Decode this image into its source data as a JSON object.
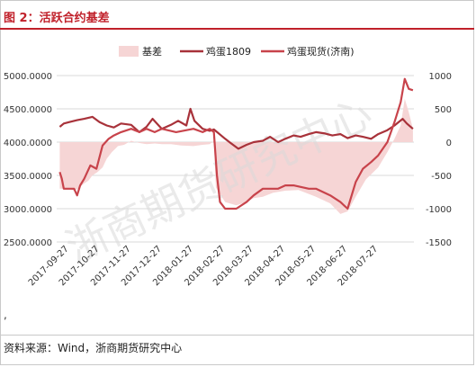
{
  "figure_title": "图 2：活跃合约基差",
  "footnote_mark": ",",
  "source_text": "资料来源：Wind，浙商期货研究中心",
  "watermark": "浙商期货研究中心",
  "colors": {
    "title": "#c0202a",
    "basis_fill": "#f6d5d5",
    "futures_line": "#a8323a",
    "spot_line": "#c8434b",
    "axis_text": "#333333",
    "gridline": "#d9d9d9",
    "watermark": "#d8d8d8"
  },
  "chart_data": {
    "type": "line",
    "legend_position": "top",
    "grid": true,
    "series": [
      {
        "name": "基差",
        "type": "area",
        "axis": "right",
        "points": [
          [
            "2017-09-18",
            -700
          ],
          [
            "2017-09-27",
            -700
          ],
          [
            "2017-10-02",
            -730
          ],
          [
            "2017-10-06",
            -700
          ],
          [
            "2017-10-12",
            -620
          ],
          [
            "2017-10-16",
            -580
          ],
          [
            "2017-10-20",
            -500
          ],
          [
            "2017-10-25",
            -450
          ],
          [
            "2017-10-30",
            -380
          ],
          [
            "2017-11-03",
            -250
          ],
          [
            "2017-11-08",
            -150
          ],
          [
            "2017-11-14",
            -60
          ],
          [
            "2017-11-20",
            -40
          ],
          [
            "2017-11-27",
            20
          ],
          [
            "2017-12-04",
            -10
          ],
          [
            "2017-12-12",
            -30
          ],
          [
            "2017-12-20",
            -20
          ],
          [
            "2017-12-27",
            -30
          ],
          [
            "2018-01-05",
            -30
          ],
          [
            "2018-01-15",
            -50
          ],
          [
            "2018-01-27",
            -60
          ],
          [
            "2018-02-05",
            -40
          ],
          [
            "2018-02-12",
            -30
          ],
          [
            "2018-02-16",
            20
          ],
          [
            "2018-02-18",
            -680
          ],
          [
            "2018-02-27",
            -900
          ],
          [
            "2018-03-10",
            -950
          ],
          [
            "2018-03-20",
            -900
          ],
          [
            "2018-03-27",
            -840
          ],
          [
            "2018-04-05",
            -820
          ],
          [
            "2018-04-15",
            -760
          ],
          [
            "2018-04-27",
            -730
          ],
          [
            "2018-05-10",
            -720
          ],
          [
            "2018-05-27",
            -820
          ],
          [
            "2018-06-10",
            -920
          ],
          [
            "2018-06-20",
            -1080
          ],
          [
            "2018-06-27",
            -1040
          ],
          [
            "2018-07-05",
            -820
          ],
          [
            "2018-07-15",
            -560
          ],
          [
            "2018-07-27",
            -380
          ],
          [
            "2018-08-05",
            -150
          ],
          [
            "2018-08-12",
            50
          ],
          [
            "2018-08-18",
            250
          ],
          [
            "2018-08-22",
            650
          ],
          [
            "2018-08-26",
            450
          ],
          [
            "2018-08-30",
            200
          ]
        ]
      },
      {
        "name": "鸡蛋1809",
        "type": "line",
        "axis": "left",
        "points": [
          [
            "2017-09-18",
            4230
          ],
          [
            "2017-09-22",
            4280
          ],
          [
            "2017-09-27",
            4300
          ],
          [
            "2017-10-05",
            4330
          ],
          [
            "2017-10-12",
            4350
          ],
          [
            "2017-10-20",
            4380
          ],
          [
            "2017-10-27",
            4300
          ],
          [
            "2017-11-03",
            4250
          ],
          [
            "2017-11-10",
            4220
          ],
          [
            "2017-11-17",
            4280
          ],
          [
            "2017-11-27",
            4260
          ],
          [
            "2017-12-05",
            4150
          ],
          [
            "2017-12-12",
            4230
          ],
          [
            "2017-12-18",
            4350
          ],
          [
            "2017-12-27",
            4200
          ],
          [
            "2018-01-05",
            4260
          ],
          [
            "2018-01-12",
            4320
          ],
          [
            "2018-01-20",
            4250
          ],
          [
            "2018-01-24",
            4500
          ],
          [
            "2018-01-28",
            4320
          ],
          [
            "2018-02-05",
            4200
          ],
          [
            "2018-02-12",
            4170
          ],
          [
            "2018-02-16",
            4190
          ],
          [
            "2018-02-27",
            4050
          ],
          [
            "2018-03-05",
            3980
          ],
          [
            "2018-03-12",
            3900
          ],
          [
            "2018-03-20",
            3960
          ],
          [
            "2018-03-27",
            4000
          ],
          [
            "2018-04-05",
            4020
          ],
          [
            "2018-04-12",
            4080
          ],
          [
            "2018-04-20",
            4000
          ],
          [
            "2018-04-27",
            4050
          ],
          [
            "2018-05-05",
            4100
          ],
          [
            "2018-05-12",
            4080
          ],
          [
            "2018-05-20",
            4120
          ],
          [
            "2018-05-27",
            4150
          ],
          [
            "2018-06-05",
            4130
          ],
          [
            "2018-06-12",
            4100
          ],
          [
            "2018-06-20",
            4120
          ],
          [
            "2018-06-27",
            4060
          ],
          [
            "2018-07-05",
            4100
          ],
          [
            "2018-07-12",
            4080
          ],
          [
            "2018-07-20",
            4050
          ],
          [
            "2018-07-27",
            4120
          ],
          [
            "2018-08-05",
            4180
          ],
          [
            "2018-08-12",
            4250
          ],
          [
            "2018-08-20",
            4350
          ],
          [
            "2018-08-24",
            4280
          ],
          [
            "2018-08-30",
            4200
          ]
        ]
      },
      {
        "name": "鸡蛋现货(济南)",
        "type": "line",
        "axis": "left",
        "points": [
          [
            "2017-09-18",
            3550
          ],
          [
            "2017-09-20",
            3450
          ],
          [
            "2017-09-22",
            3300
          ],
          [
            "2017-10-02",
            3300
          ],
          [
            "2017-10-05",
            3200
          ],
          [
            "2017-10-08",
            3350
          ],
          [
            "2017-10-12",
            3450
          ],
          [
            "2017-10-18",
            3650
          ],
          [
            "2017-10-24",
            3600
          ],
          [
            "2017-10-30",
            3950
          ],
          [
            "2017-11-05",
            4050
          ],
          [
            "2017-11-10",
            4100
          ],
          [
            "2017-11-17",
            4150
          ],
          [
            "2017-11-27",
            4200
          ],
          [
            "2017-12-05",
            4150
          ],
          [
            "2017-12-12",
            4200
          ],
          [
            "2017-12-20",
            4150
          ],
          [
            "2017-12-27",
            4200
          ],
          [
            "2018-01-10",
            4150
          ],
          [
            "2018-01-27",
            4200
          ],
          [
            "2018-02-05",
            4150
          ],
          [
            "2018-02-12",
            4200
          ],
          [
            "2018-02-16",
            4150
          ],
          [
            "2018-02-19",
            3500
          ],
          [
            "2018-02-22",
            3100
          ],
          [
            "2018-02-27",
            3000
          ],
          [
            "2018-03-10",
            3000
          ],
          [
            "2018-03-20",
            3100
          ],
          [
            "2018-03-27",
            3200
          ],
          [
            "2018-04-05",
            3300
          ],
          [
            "2018-04-20",
            3300
          ],
          [
            "2018-04-27",
            3350
          ],
          [
            "2018-05-05",
            3350
          ],
          [
            "2018-05-20",
            3300
          ],
          [
            "2018-05-27",
            3300
          ],
          [
            "2018-06-10",
            3200
          ],
          [
            "2018-06-20",
            3100
          ],
          [
            "2018-06-27",
            3000
          ],
          [
            "2018-07-05",
            3400
          ],
          [
            "2018-07-12",
            3600
          ],
          [
            "2018-07-20",
            3700
          ],
          [
            "2018-07-27",
            3800
          ],
          [
            "2018-08-05",
            4000
          ],
          [
            "2018-08-12",
            4300
          ],
          [
            "2018-08-18",
            4600
          ],
          [
            "2018-08-22",
            4950
          ],
          [
            "2018-08-26",
            4800
          ],
          [
            "2018-08-30",
            4780
          ]
        ]
      }
    ],
    "x_range": [
      "2017-09-15",
      "2018-08-31"
    ],
    "x_ticks": [
      "2017-09-27",
      "2017-10-27",
      "2017-11-27",
      "2017-12-27",
      "2018-01-27",
      "2018-02-27",
      "2018-03-27",
      "2018-04-27",
      "2018-05-27",
      "2018-06-27",
      "2018-07-27"
    ],
    "y_left": {
      "range": [
        2500,
        5000
      ],
      "ticks": [
        "2500.0000",
        "3000.0000",
        "3500.0000",
        "4000.0000",
        "4500.0000",
        "5000.0000"
      ]
    },
    "y_right": {
      "range": [
        -1500,
        1000
      ],
      "ticks": [
        "-1500",
        "-1000",
        "-500",
        "0",
        "500",
        "1000"
      ]
    }
  }
}
